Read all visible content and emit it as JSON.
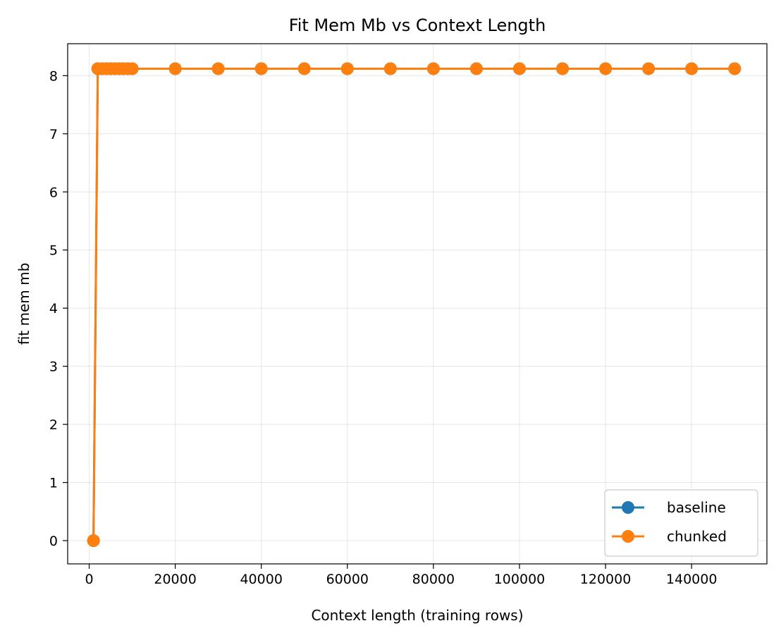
{
  "chart_data": {
    "type": "line",
    "title": "Fit Mem Mb vs Context Length",
    "xlabel": "Context length (training rows)",
    "ylabel": "fit mem mb",
    "xlim": [
      -5000,
      157500
    ],
    "ylim": [
      -0.4,
      8.55
    ],
    "xticks": [
      0,
      20000,
      40000,
      60000,
      80000,
      100000,
      120000,
      140000
    ],
    "yticks": [
      0,
      1,
      2,
      3,
      4,
      5,
      6,
      7,
      8
    ],
    "grid": true,
    "legend": "lower-right",
    "x": [
      1000,
      2000,
      3000,
      4000,
      5000,
      6000,
      7000,
      8000,
      9000,
      10000,
      20000,
      30000,
      40000,
      50000,
      60000,
      70000,
      80000,
      90000,
      100000,
      110000,
      120000,
      130000,
      140000,
      150000
    ],
    "series": [
      {
        "name": "baseline",
        "color": "#1f77b4",
        "values": [
          0,
          8.12,
          8.12,
          8.12,
          8.12,
          8.12,
          8.12,
          8.12,
          8.12,
          8.12,
          8.12,
          8.12,
          8.12,
          8.12,
          8.12,
          8.12,
          8.12,
          8.12,
          8.12,
          8.12,
          8.12,
          8.12,
          8.12,
          8.12
        ]
      },
      {
        "name": "chunked",
        "color": "#ff7f0e",
        "values": [
          0,
          8.12,
          8.12,
          8.12,
          8.12,
          8.12,
          8.12,
          8.12,
          8.12,
          8.12,
          8.12,
          8.12,
          8.12,
          8.12,
          8.12,
          8.12,
          8.12,
          8.12,
          8.12,
          8.12,
          8.12,
          8.12,
          8.12,
          8.12
        ]
      }
    ]
  }
}
